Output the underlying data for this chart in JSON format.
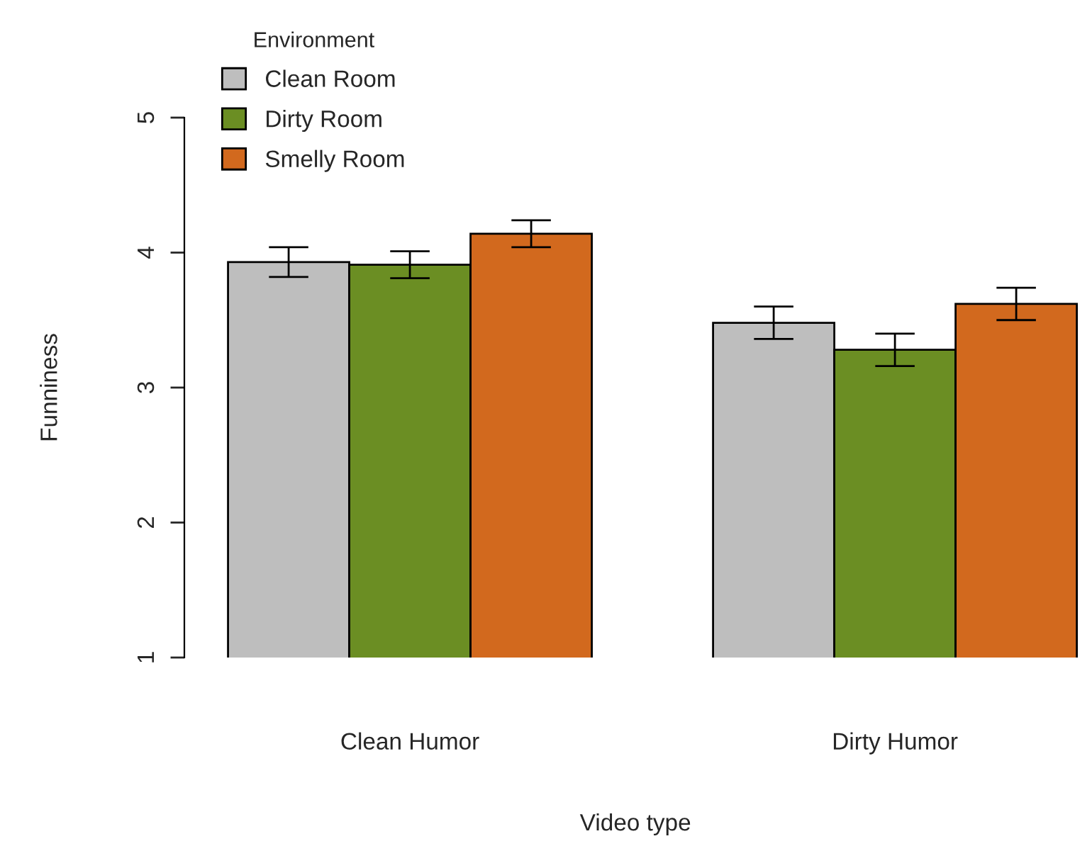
{
  "chart_data": {
    "type": "bar",
    "xlabel": "Video type",
    "ylabel": "Funniness",
    "legend_title": "Environment",
    "categories": [
      "Clean Humor",
      "Dirty Humor"
    ],
    "series": [
      {
        "name": "Clean Room",
        "color": "#bebebe",
        "values": [
          3.93,
          3.48
        ],
        "errors": [
          0.11,
          0.12
        ]
      },
      {
        "name": "Dirty Room",
        "color": "#6b8e23",
        "values": [
          3.91,
          3.28
        ],
        "errors": [
          0.1,
          0.12
        ]
      },
      {
        "name": "Smelly Room",
        "color": "#d2691e",
        "values": [
          4.14,
          3.62
        ],
        "errors": [
          0.1,
          0.12
        ]
      }
    ],
    "ylim": [
      1,
      5
    ],
    "yticks": [
      1,
      2,
      3,
      4,
      5
    ],
    "grid": false,
    "legend": "top left"
  }
}
